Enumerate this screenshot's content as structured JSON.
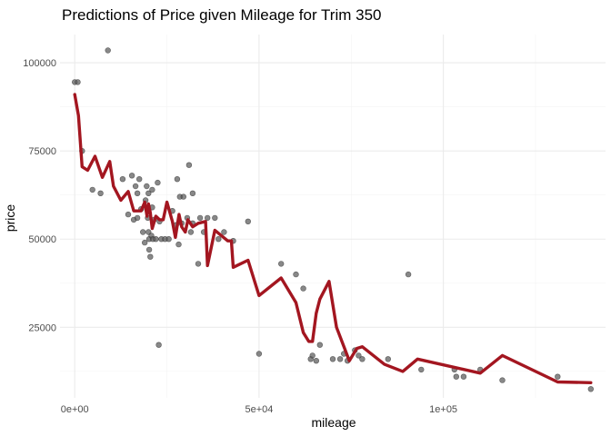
{
  "chart_data": {
    "type": "scatter",
    "title": "Predictions of Price given Mileage for Trim 350",
    "xlabel": "mileage",
    "ylabel": "price",
    "xlim": [
      -4000,
      144000
    ],
    "ylim": [
      5000,
      108000
    ],
    "x_ticks": [
      {
        "value": 0,
        "label": "0e+00"
      },
      {
        "value": 50000,
        "label": "5e+04"
      },
      {
        "value": 100000,
        "label": "1e+05"
      }
    ],
    "y_ticks": [
      {
        "value": 25000,
        "label": "25000"
      },
      {
        "value": 50000,
        "label": "50000"
      },
      {
        "value": 75000,
        "label": "75000"
      },
      {
        "value": 100000,
        "label": "100000"
      }
    ],
    "grid": true,
    "colors": {
      "points": "#555555",
      "line": "#a31620",
      "grid": "#ebebeb"
    },
    "points": [
      {
        "x": 0,
        "y": 94500
      },
      {
        "x": 800,
        "y": 94500
      },
      {
        "x": 2000,
        "y": 75000
      },
      {
        "x": 4800,
        "y": 64000
      },
      {
        "x": 7000,
        "y": 63000
      },
      {
        "x": 9000,
        "y": 103500
      },
      {
        "x": 13000,
        "y": 67000
      },
      {
        "x": 14500,
        "y": 57000
      },
      {
        "x": 15500,
        "y": 68000
      },
      {
        "x": 16000,
        "y": 55500
      },
      {
        "x": 16500,
        "y": 65000
      },
      {
        "x": 17000,
        "y": 56000
      },
      {
        "x": 17000,
        "y": 63000
      },
      {
        "x": 17500,
        "y": 67000
      },
      {
        "x": 18000,
        "y": 58500
      },
      {
        "x": 18500,
        "y": 52000
      },
      {
        "x": 19000,
        "y": 49000
      },
      {
        "x": 19200,
        "y": 61000
      },
      {
        "x": 19500,
        "y": 65000
      },
      {
        "x": 19800,
        "y": 56000
      },
      {
        "x": 20000,
        "y": 52000
      },
      {
        "x": 20000,
        "y": 63000
      },
      {
        "x": 20200,
        "y": 50000
      },
      {
        "x": 20200,
        "y": 47000
      },
      {
        "x": 20500,
        "y": 45000
      },
      {
        "x": 20800,
        "y": 51000
      },
      {
        "x": 21000,
        "y": 59000
      },
      {
        "x": 21000,
        "y": 64000
      },
      {
        "x": 21200,
        "y": 50000
      },
      {
        "x": 21500,
        "y": 55500
      },
      {
        "x": 22000,
        "y": 50000
      },
      {
        "x": 22500,
        "y": 66000
      },
      {
        "x": 23000,
        "y": 55000
      },
      {
        "x": 22800,
        "y": 20000
      },
      {
        "x": 23500,
        "y": 50000
      },
      {
        "x": 24500,
        "y": 50000
      },
      {
        "x": 25500,
        "y": 50000
      },
      {
        "x": 26500,
        "y": 58000
      },
      {
        "x": 27500,
        "y": 54000
      },
      {
        "x": 27800,
        "y": 67000
      },
      {
        "x": 28200,
        "y": 48500
      },
      {
        "x": 28500,
        "y": 62000
      },
      {
        "x": 29000,
        "y": 54500
      },
      {
        "x": 29500,
        "y": 62000
      },
      {
        "x": 30500,
        "y": 56000
      },
      {
        "x": 31000,
        "y": 71000
      },
      {
        "x": 31500,
        "y": 52000
      },
      {
        "x": 32000,
        "y": 54500
      },
      {
        "x": 32000,
        "y": 63000
      },
      {
        "x": 33500,
        "y": 43000
      },
      {
        "x": 34000,
        "y": 56000
      },
      {
        "x": 35000,
        "y": 52000
      },
      {
        "x": 36000,
        "y": 56000
      },
      {
        "x": 38000,
        "y": 56000
      },
      {
        "x": 39000,
        "y": 50000
      },
      {
        "x": 40500,
        "y": 52000
      },
      {
        "x": 43000,
        "y": 49500
      },
      {
        "x": 47000,
        "y": 55000
      },
      {
        "x": 50000,
        "y": 17500
      },
      {
        "x": 56000,
        "y": 43000
      },
      {
        "x": 60000,
        "y": 40000
      },
      {
        "x": 62000,
        "y": 36000
      },
      {
        "x": 64000,
        "y": 16000
      },
      {
        "x": 64500,
        "y": 17000
      },
      {
        "x": 65500,
        "y": 15500
      },
      {
        "x": 66500,
        "y": 20000
      },
      {
        "x": 70000,
        "y": 16000
      },
      {
        "x": 72000,
        "y": 16000
      },
      {
        "x": 73000,
        "y": 17500
      },
      {
        "x": 74000,
        "y": 15500
      },
      {
        "x": 76000,
        "y": 18500
      },
      {
        "x": 77000,
        "y": 17000
      },
      {
        "x": 78000,
        "y": 16000
      },
      {
        "x": 85000,
        "y": 16000
      },
      {
        "x": 90500,
        "y": 40000
      },
      {
        "x": 94000,
        "y": 13000
      },
      {
        "x": 103000,
        "y": 13000
      },
      {
        "x": 103500,
        "y": 11000
      },
      {
        "x": 105500,
        "y": 11000
      },
      {
        "x": 110000,
        "y": 13000
      },
      {
        "x": 116000,
        "y": 10000
      },
      {
        "x": 131000,
        "y": 11000
      },
      {
        "x": 140000,
        "y": 7500
      }
    ],
    "fitted_line": [
      {
        "x": 0,
        "y": 91000
      },
      {
        "x": 1000,
        "y": 85000
      },
      {
        "x": 2000,
        "y": 70500
      },
      {
        "x": 3500,
        "y": 69500
      },
      {
        "x": 5500,
        "y": 73500
      },
      {
        "x": 7500,
        "y": 67500
      },
      {
        "x": 9500,
        "y": 72000
      },
      {
        "x": 10500,
        "y": 65000
      },
      {
        "x": 12500,
        "y": 61000
      },
      {
        "x": 14500,
        "y": 63500
      },
      {
        "x": 16000,
        "y": 58000
      },
      {
        "x": 18000,
        "y": 58000
      },
      {
        "x": 19000,
        "y": 60500
      },
      {
        "x": 19600,
        "y": 56500
      },
      {
        "x": 20000,
        "y": 60000
      },
      {
        "x": 20500,
        "y": 57500
      },
      {
        "x": 21000,
        "y": 53000
      },
      {
        "x": 22000,
        "y": 56500
      },
      {
        "x": 23000,
        "y": 55500
      },
      {
        "x": 24000,
        "y": 55500
      },
      {
        "x": 25000,
        "y": 60500
      },
      {
        "x": 26500,
        "y": 55000
      },
      {
        "x": 27300,
        "y": 50500
      },
      {
        "x": 28300,
        "y": 57000
      },
      {
        "x": 29000,
        "y": 53500
      },
      {
        "x": 30000,
        "y": 52000
      },
      {
        "x": 30700,
        "y": 55500
      },
      {
        "x": 32000,
        "y": 53500
      },
      {
        "x": 33500,
        "y": 54500
      },
      {
        "x": 35500,
        "y": 55000
      },
      {
        "x": 36000,
        "y": 42500
      },
      {
        "x": 38000,
        "y": 52500
      },
      {
        "x": 41500,
        "y": 49500
      },
      {
        "x": 42500,
        "y": 49500
      },
      {
        "x": 43000,
        "y": 42000
      },
      {
        "x": 47000,
        "y": 44000
      },
      {
        "x": 50000,
        "y": 34000
      },
      {
        "x": 56000,
        "y": 39000
      },
      {
        "x": 60000,
        "y": 32000
      },
      {
        "x": 62000,
        "y": 23500
      },
      {
        "x": 63500,
        "y": 21000
      },
      {
        "x": 64500,
        "y": 21000
      },
      {
        "x": 65500,
        "y": 29000
      },
      {
        "x": 66500,
        "y": 33000
      },
      {
        "x": 69000,
        "y": 38000
      },
      {
        "x": 71000,
        "y": 25000
      },
      {
        "x": 74500,
        "y": 15500
      },
      {
        "x": 76500,
        "y": 19000
      },
      {
        "x": 78000,
        "y": 19500
      },
      {
        "x": 84000,
        "y": 14500
      },
      {
        "x": 89000,
        "y": 12500
      },
      {
        "x": 93000,
        "y": 16000
      },
      {
        "x": 110000,
        "y": 12000
      },
      {
        "x": 116000,
        "y": 17000
      },
      {
        "x": 131000,
        "y": 9500
      },
      {
        "x": 140000,
        "y": 9300
      }
    ]
  }
}
